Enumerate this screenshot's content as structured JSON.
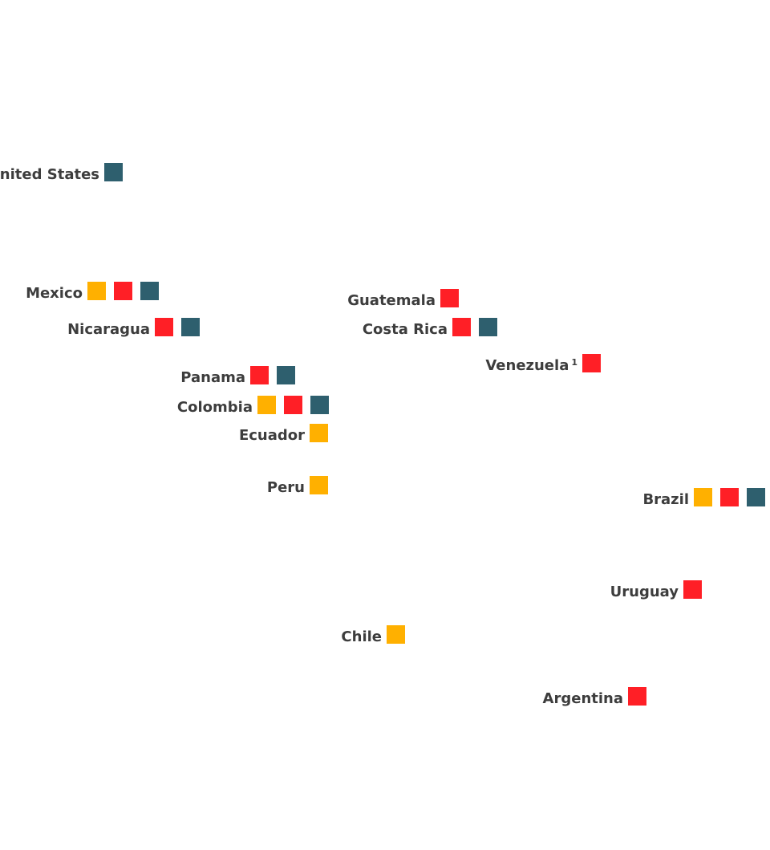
{
  "colors": {
    "yellow": "#FFB000",
    "red": "#FF1F26",
    "teal": "#2E5F6E"
  },
  "countries": [
    {
      "key": "united-states",
      "name": "United States",
      "sup": "",
      "squares": [
        "teal"
      ]
    },
    {
      "key": "mexico",
      "name": "Mexico",
      "sup": "",
      "squares": [
        "yellow",
        "red",
        "teal"
      ]
    },
    {
      "key": "nicaragua",
      "name": "Nicaragua",
      "sup": "",
      "squares": [
        "red",
        "teal"
      ]
    },
    {
      "key": "guatemala",
      "name": "Guatemala",
      "sup": "",
      "squares": [
        "red"
      ]
    },
    {
      "key": "costa-rica",
      "name": "Costa Rica",
      "sup": "",
      "squares": [
        "red",
        "teal"
      ]
    },
    {
      "key": "venezuela",
      "name": "Venezuela",
      "sup": "1",
      "squares": [
        "red"
      ]
    },
    {
      "key": "panama",
      "name": "Panama",
      "sup": "",
      "squares": [
        "red",
        "teal"
      ]
    },
    {
      "key": "colombia",
      "name": "Colombia",
      "sup": "",
      "squares": [
        "yellow",
        "red",
        "teal"
      ]
    },
    {
      "key": "ecuador",
      "name": "Ecuador",
      "sup": "",
      "squares": [
        "yellow"
      ]
    },
    {
      "key": "peru",
      "name": "Peru",
      "sup": "",
      "squares": [
        "yellow"
      ]
    },
    {
      "key": "brazil",
      "name": "Brazil",
      "sup": "",
      "squares": [
        "yellow",
        "red",
        "teal"
      ]
    },
    {
      "key": "uruguay",
      "name": "Uruguay",
      "sup": "",
      "squares": [
        "red"
      ]
    },
    {
      "key": "chile",
      "name": "Chile",
      "sup": "",
      "squares": [
        "yellow"
      ]
    },
    {
      "key": "argentina",
      "name": "Argentina",
      "sup": "",
      "squares": [
        "red"
      ]
    }
  ]
}
